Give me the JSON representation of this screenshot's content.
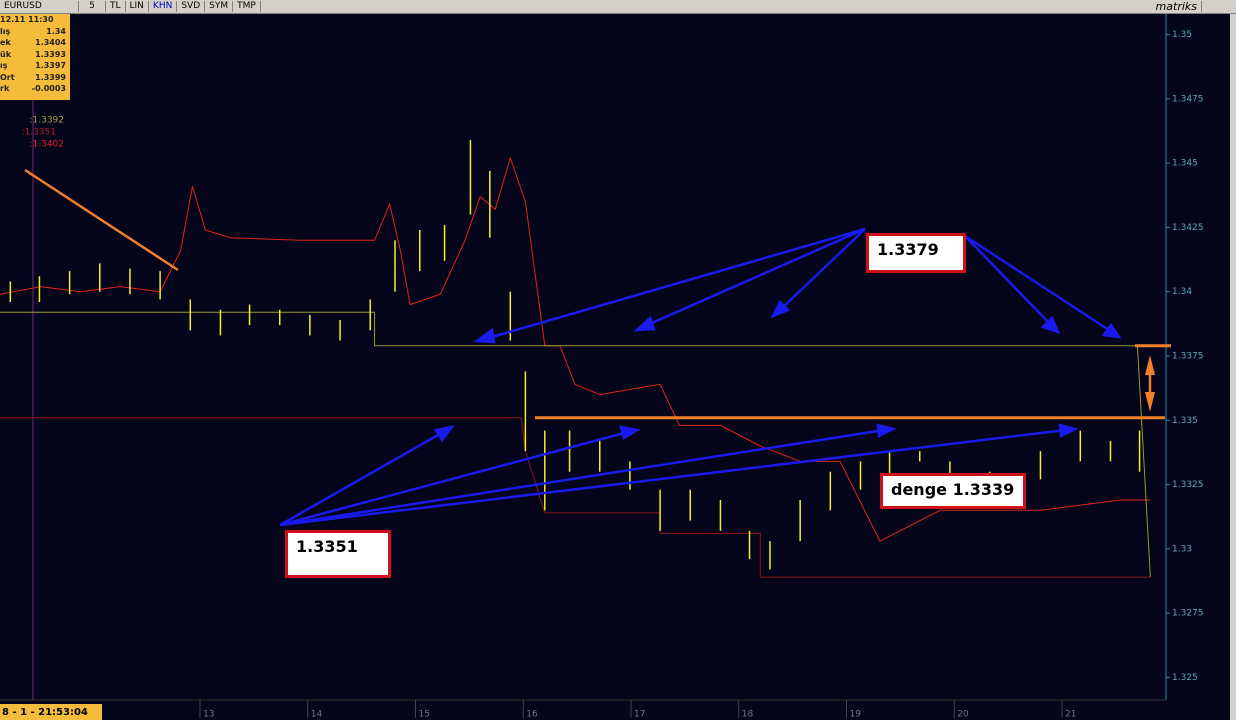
{
  "toolbar": {
    "symbol": "EURUSD",
    "buttons": [
      "5",
      "TL",
      "LIN",
      "KHN",
      "SVD",
      "SYM",
      "TMP"
    ],
    "brand": "matriks"
  },
  "info_box": {
    "time": "12.11 11:30",
    "rows": [
      [
        "lış",
        "1.34"
      ],
      [
        "ek",
        "1.3404"
      ],
      [
        "ük",
        "1.3393"
      ],
      [
        "ış",
        "1.3397"
      ],
      [
        "Ort",
        "1.3399"
      ],
      [
        "rk",
        "-0.0003"
      ]
    ]
  },
  "side_labels": [
    ":1.3392",
    ":1.3351",
    ":1.3402"
  ],
  "status": "8 - 1 - 21:53:04",
  "annotations": [
    "1.3379",
    "1.3351",
    "denge 1.3339"
  ],
  "chart_data": {
    "type": "price",
    "xlim": [
      11.144,
      21.956
    ],
    "xticks": [
      13,
      14,
      15,
      16,
      17,
      18,
      19,
      20,
      21
    ],
    "ylim": [
      1.3242,
      1.3508
    ],
    "yticks": [
      1.35,
      1.3475,
      1.345,
      1.3425,
      1.34,
      1.3375,
      1.335,
      1.3325,
      1.33,
      1.3275,
      1.325
    ],
    "bar_color": "#f2f21e",
    "x": [
      11.24,
      11.51,
      11.79,
      12.07,
      12.35,
      12.63,
      12.91,
      13.19,
      13.46,
      13.74,
      14.02,
      14.3,
      14.58,
      14.81,
      15.04,
      15.27,
      15.51,
      15.69,
      15.88,
      16.02,
      16.2,
      16.43,
      16.71,
      16.99,
      17.27,
      17.55,
      17.83,
      18.1,
      18.29,
      18.57,
      18.85,
      19.13,
      19.4,
      19.68,
      19.96,
      20.33,
      20.8,
      21.17,
      21.45,
      21.72
    ],
    "high": [
      1.3404,
      1.3406,
      1.3408,
      1.3411,
      1.3409,
      1.3408,
      1.3397,
      1.3393,
      1.3395,
      1.3393,
      1.3391,
      1.3389,
      1.3397,
      1.342,
      1.3424,
      1.3426,
      1.3459,
      1.3447,
      1.34,
      1.3369,
      1.3346,
      1.3346,
      1.3342,
      1.3334,
      1.3323,
      1.3323,
      1.3319,
      1.3307,
      1.3303,
      1.3319,
      1.333,
      1.3334,
      1.3338,
      1.3338,
      1.3334,
      1.333,
      1.3338,
      1.3346,
      1.3342,
      1.3346
    ],
    "low": [
      1.3396,
      1.3396,
      1.3399,
      1.34,
      1.3399,
      1.3397,
      1.3385,
      1.3383,
      1.3387,
      1.3387,
      1.3383,
      1.3381,
      1.3385,
      1.34,
      1.3408,
      1.3412,
      1.343,
      1.3421,
      1.3381,
      1.3338,
      1.3315,
      1.333,
      1.333,
      1.3323,
      1.3307,
      1.3311,
      1.3307,
      1.3296,
      1.3292,
      1.3303,
      1.3315,
      1.3323,
      1.3327,
      1.3334,
      1.3327,
      1.3323,
      1.3327,
      1.3334,
      1.3334,
      1.333
    ],
    "lines": [
      {
        "color": "#e0251b",
        "x": [
          11.14,
          11.52,
          11.89,
          12.26,
          12.63,
          12.82,
          12.93,
          13.05,
          13.28,
          13.93,
          14.62,
          14.76,
          14.86,
          14.95,
          15.23,
          15.46,
          15.6,
          15.74,
          15.88,
          16.02,
          16.2,
          16.34,
          16.48,
          16.71,
          17.27,
          17.45,
          17.83,
          18.2,
          18.57,
          18.94,
          19.31,
          19.59,
          19.87,
          20.8,
          21.54,
          21.82
        ],
        "values": [
          1.3399,
          1.3402,
          1.34,
          1.3402,
          1.34,
          1.3416,
          1.3441,
          1.3424,
          1.3421,
          1.342,
          1.342,
          1.3434,
          1.3416,
          1.3395,
          1.3399,
          1.342,
          1.3437,
          1.3432,
          1.3452,
          1.3435,
          1.3379,
          1.3379,
          1.3364,
          1.336,
          1.3364,
          1.3348,
          1.3348,
          1.334,
          1.3334,
          1.3334,
          1.3303,
          1.3309,
          1.3315,
          1.3315,
          1.3319,
          1.3319
        ]
      },
      {
        "color": "#9a9a30",
        "x": [
          11.14,
          12.07,
          12.07,
          14.62,
          14.62,
          21.7,
          21.82
        ],
        "values": [
          1.3392,
          1.3392,
          1.3392,
          1.3392,
          1.3379,
          1.3379,
          1.3289
        ]
      },
      {
        "color": "#8a1a14",
        "x": [
          11.14,
          15.98,
          16.02,
          16.2,
          17.27,
          17.27,
          18.2,
          18.2,
          21.82
        ],
        "values": [
          1.3351,
          1.3351,
          1.3338,
          1.3314,
          1.3314,
          1.3306,
          1.3306,
          1.3289,
          1.3289
        ]
      }
    ],
    "levels": [
      1.3351,
      1.3379
    ],
    "level_color": "#f07f2a"
  }
}
